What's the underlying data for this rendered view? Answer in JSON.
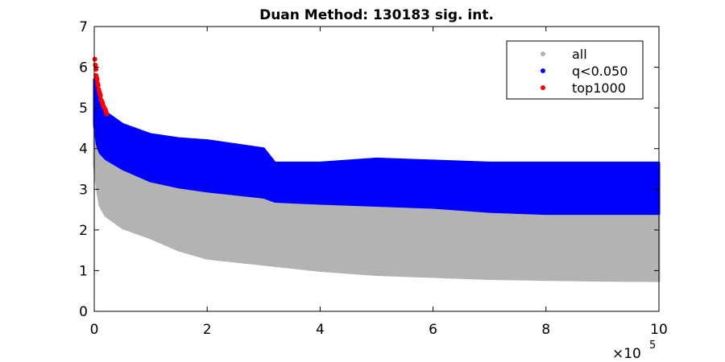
{
  "chart_data": {
    "type": "scatter",
    "title": "Duan Method: 130183 sig. int.",
    "xlabel": "",
    "ylabel": "",
    "xlim": [
      0,
      1000000
    ],
    "ylim": [
      0,
      7
    ],
    "x_ticks": [
      0,
      200000,
      400000,
      600000,
      800000,
      1000000
    ],
    "x_tick_labels": [
      "0",
      "2",
      "4",
      "6",
      "8",
      "10"
    ],
    "x_exponent_base": "×10",
    "x_exponent": "5",
    "y_ticks": [
      0,
      1,
      2,
      3,
      4,
      5,
      6,
      7
    ],
    "y_tick_labels": [
      "0",
      "1",
      "2",
      "3",
      "4",
      "5",
      "6",
      "7"
    ],
    "grid": false,
    "legend_position": "top-right",
    "series": [
      {
        "name": "all",
        "color": "#b3b3b3",
        "shape": "band",
        "x": [
          0,
          5000,
          10000,
          20000,
          50000,
          100000,
          150000,
          200000,
          300000,
          400000,
          500000,
          600000,
          700000,
          800000,
          900000,
          1000000
        ],
        "y_low": [
          3.6,
          3.0,
          2.6,
          2.35,
          2.05,
          1.8,
          1.5,
          1.3,
          1.15,
          1.0,
          0.9,
          0.85,
          0.8,
          0.78,
          0.76,
          0.75
        ],
        "y_high": [
          4.6,
          4.1,
          3.9,
          3.75,
          3.5,
          3.2,
          3.05,
          2.95,
          2.8,
          2.65,
          2.6,
          2.55,
          2.45,
          2.4,
          2.4,
          2.4
        ]
      },
      {
        "name": "q<0.050",
        "color": "#0000ff",
        "shape": "band",
        "x": [
          0,
          5000,
          10000,
          20000,
          50000,
          100000,
          150000,
          200000,
          300000,
          320000,
          400000,
          500000,
          600000,
          700000,
          800000,
          900000,
          1000000
        ],
        "y_low": [
          4.6,
          4.1,
          3.9,
          3.75,
          3.5,
          3.2,
          3.05,
          2.95,
          2.8,
          2.7,
          2.65,
          2.6,
          2.55,
          2.45,
          2.4,
          2.4,
          2.4
        ],
        "y_high": [
          5.7,
          5.55,
          5.1,
          4.9,
          4.6,
          4.35,
          4.25,
          4.2,
          4.0,
          3.65,
          3.65,
          3.75,
          3.7,
          3.65,
          3.65,
          3.65,
          3.65
        ]
      },
      {
        "name": "top1000",
        "color": "#ff0000",
        "shape": "points",
        "x": [
          1000,
          2000,
          3000,
          3000,
          4000,
          5000,
          6000,
          7000,
          8000,
          9000,
          10000,
          11000,
          12000,
          14000,
          15000,
          16000,
          18000,
          20000,
          21000,
          22000
        ],
        "y": [
          6.2,
          6.05,
          5.95,
          5.8,
          5.75,
          5.7,
          5.6,
          5.55,
          5.45,
          5.4,
          5.35,
          5.3,
          5.2,
          5.15,
          5.1,
          5.05,
          5.0,
          4.95,
          4.9,
          4.85
        ]
      }
    ]
  }
}
